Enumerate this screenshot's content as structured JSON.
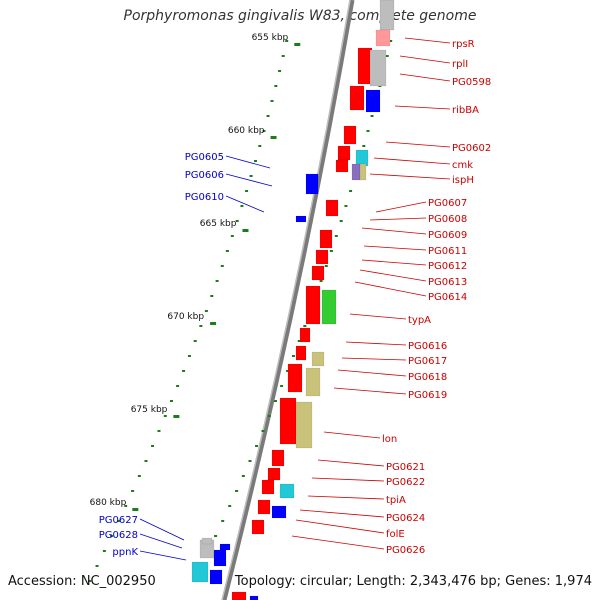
{
  "map": {
    "title": "Porphyromonas gingivalis W83, complete genome",
    "accession": "Accession: NC_002950",
    "summary": "Topology: circular; Length: 2,343,476 bp; Genes: 1,974",
    "colors": {
      "backbone": "#7a7a7a",
      "tick": "#1a7f1a",
      "right_label": "#cc0000",
      "left_label": "#0000cc",
      "cds_red": "#ff0000",
      "cds_blue": "#0000ff",
      "rna_grey": "#bdbdbd",
      "khaki": "#c9c27a",
      "cyan": "#22c8d6",
      "green": "#33cc33",
      "purple": "#8a6fbf"
    },
    "kbp_labels": [
      "655 kbp",
      "660 kbp",
      "665 kbp",
      "670 kbp",
      "675 kbp",
      "680 kbp"
    ],
    "right_genes": [
      "rpsR",
      "rplI",
      "PG0598",
      "ribBA",
      "PG0602",
      "cmk",
      "ispH",
      "PG0607",
      "PG0608",
      "PG0609",
      "PG0611",
      "PG0612",
      "PG0613",
      "PG0614",
      "typA",
      "PG0616",
      "PG0617",
      "PG0618",
      "PG0619",
      "lon",
      "PG0621",
      "PG0622",
      "tpiA",
      "PG0624",
      "folE",
      "PG0626"
    ],
    "left_genes": [
      "PG0605",
      "PG0606",
      "PG0610",
      "PG0627",
      "PG0628",
      "ppnK"
    ]
  }
}
